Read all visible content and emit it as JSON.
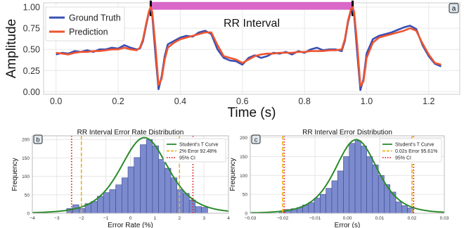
{
  "chart_data": [
    {
      "id": "a",
      "type": "line",
      "panel_label": "a",
      "xlabel": "Time (s)",
      "ylabel": "Amplitude",
      "xlim": [
        -0.04,
        1.3
      ],
      "ylim": [
        -0.03,
        1.05
      ],
      "xticks": [
        0.0,
        0.2,
        0.4,
        0.6,
        0.8,
        1.0,
        1.2
      ],
      "xtick_labels": [
        "0.0",
        "0.2",
        "0.4",
        "0.6",
        "0.8",
        "1.0",
        "1.2"
      ],
      "yticks": [
        0.0,
        0.25,
        0.5,
        0.75,
        1.0
      ],
      "ytick_labels": [
        "0.00",
        "0.25",
        "0.50",
        "0.75",
        "1.00"
      ],
      "grid": true,
      "legend_position": "top-left",
      "annotation": {
        "text": "RR Interval",
        "x_start": 0.305,
        "x_end": 0.955,
        "y": 1.01,
        "color": "#d968c9"
      },
      "series": [
        {
          "name": "Ground Truth",
          "color": "#3b4fb3",
          "x": [
            0.0,
            0.02,
            0.04,
            0.06,
            0.08,
            0.1,
            0.12,
            0.14,
            0.16,
            0.18,
            0.2,
            0.22,
            0.24,
            0.26,
            0.27,
            0.28,
            0.29,
            0.3,
            0.305,
            0.31,
            0.32,
            0.33,
            0.34,
            0.35,
            0.36,
            0.38,
            0.4,
            0.42,
            0.44,
            0.46,
            0.48,
            0.5,
            0.52,
            0.54,
            0.56,
            0.58,
            0.6,
            0.62,
            0.64,
            0.66,
            0.68,
            0.7,
            0.72,
            0.74,
            0.76,
            0.78,
            0.8,
            0.82,
            0.84,
            0.86,
            0.88,
            0.9,
            0.92,
            0.93,
            0.94,
            0.95,
            0.955,
            0.96,
            0.97,
            0.98,
            0.99,
            1.0,
            1.02,
            1.04,
            1.06,
            1.08,
            1.1,
            1.12,
            1.14,
            1.16,
            1.18,
            1.2,
            1.22,
            1.24
          ],
          "y": [
            0.44,
            0.46,
            0.45,
            0.48,
            0.47,
            0.49,
            0.47,
            0.5,
            0.5,
            0.52,
            0.51,
            0.55,
            0.52,
            0.5,
            0.51,
            0.6,
            0.78,
            0.95,
            0.99,
            0.9,
            0.45,
            0.03,
            0.18,
            0.42,
            0.56,
            0.6,
            0.64,
            0.66,
            0.65,
            0.7,
            0.72,
            0.68,
            0.5,
            0.4,
            0.37,
            0.36,
            0.32,
            0.4,
            0.43,
            0.4,
            0.42,
            0.46,
            0.45,
            0.47,
            0.44,
            0.48,
            0.46,
            0.5,
            0.52,
            0.49,
            0.5,
            0.5,
            0.48,
            0.6,
            0.82,
            0.96,
            0.98,
            0.9,
            0.45,
            0.02,
            0.15,
            0.45,
            0.62,
            0.66,
            0.68,
            0.7,
            0.73,
            0.76,
            0.78,
            0.74,
            0.55,
            0.42,
            0.33,
            0.3
          ]
        },
        {
          "name": "Prediction",
          "color": "#ee5530",
          "x": [
            0.0,
            0.02,
            0.04,
            0.06,
            0.08,
            0.1,
            0.12,
            0.14,
            0.16,
            0.18,
            0.2,
            0.22,
            0.24,
            0.26,
            0.27,
            0.28,
            0.29,
            0.3,
            0.305,
            0.31,
            0.32,
            0.33,
            0.34,
            0.35,
            0.36,
            0.38,
            0.4,
            0.42,
            0.44,
            0.46,
            0.48,
            0.5,
            0.52,
            0.54,
            0.56,
            0.58,
            0.6,
            0.62,
            0.64,
            0.66,
            0.68,
            0.7,
            0.72,
            0.74,
            0.76,
            0.78,
            0.8,
            0.82,
            0.84,
            0.86,
            0.88,
            0.9,
            0.92,
            0.93,
            0.94,
            0.95,
            0.955,
            0.96,
            0.97,
            0.98,
            0.99,
            1.0,
            1.02,
            1.04,
            1.06,
            1.08,
            1.1,
            1.12,
            1.14,
            1.16,
            1.18,
            1.2,
            1.22,
            1.24
          ],
          "y": [
            0.46,
            0.45,
            0.44,
            0.46,
            0.47,
            0.47,
            0.48,
            0.48,
            0.49,
            0.5,
            0.5,
            0.52,
            0.5,
            0.49,
            0.52,
            0.62,
            0.8,
            0.96,
            1.0,
            0.94,
            0.55,
            0.08,
            0.15,
            0.38,
            0.52,
            0.58,
            0.62,
            0.64,
            0.66,
            0.68,
            0.7,
            0.7,
            0.55,
            0.42,
            0.4,
            0.38,
            0.34,
            0.38,
            0.42,
            0.44,
            0.45,
            0.45,
            0.46,
            0.46,
            0.46,
            0.47,
            0.47,
            0.48,
            0.48,
            0.48,
            0.49,
            0.49,
            0.5,
            0.62,
            0.84,
            0.98,
            1.0,
            0.94,
            0.55,
            0.07,
            0.12,
            0.4,
            0.58,
            0.64,
            0.66,
            0.68,
            0.7,
            0.72,
            0.75,
            0.72,
            0.57,
            0.44,
            0.34,
            0.32
          ]
        }
      ]
    },
    {
      "id": "b",
      "type": "bar",
      "panel_label": "b",
      "title": "RR Interval Error Rate Distribution",
      "xlabel": "Error Rate (%)",
      "ylabel": "Frequency",
      "xlim": [
        -4,
        4
      ],
      "ylim": [
        0,
        210
      ],
      "xticks": [
        -4,
        -3,
        -2,
        -1,
        0,
        1,
        2,
        3,
        4
      ],
      "xtick_labels": [
        "−4",
        "−3",
        "−2",
        "−1",
        "0",
        "1",
        "2",
        "3",
        "4"
      ],
      "yticks": [
        0,
        50,
        100,
        150,
        200
      ],
      "ytick_labels": [
        "0",
        "50",
        "100",
        "150",
        "200"
      ],
      "grid": true,
      "legend_position": "top-right",
      "bins": {
        "start": -2.6,
        "width": 0.25,
        "counts": [
          13,
          23,
          13,
          26,
          32,
          46,
          56,
          64,
          77,
          96,
          126,
          151,
          186,
          200,
          183,
          146,
          122,
          96,
          64,
          54,
          36,
          18,
          16
        ]
      },
      "curve_peak": 205,
      "series": [
        {
          "name": "Student's T Curve",
          "color": "#2a8a2a",
          "style": "solid"
        },
        {
          "name": "2% Error 92.48%",
          "color": "#f2b10f",
          "style": "dashed",
          "x_positions": [
            -2,
            2
          ]
        },
        {
          "name": "95% CI",
          "color": "#dc1e1e",
          "style": "dotted",
          "x_positions": [
            -2.4,
            2.55
          ]
        }
      ]
    },
    {
      "id": "c",
      "type": "bar",
      "panel_label": "c",
      "title": "RR Interval Error Distribution",
      "xlabel": "Error (s)",
      "ylabel": "Frequency",
      "xlim": [
        -0.03,
        0.03
      ],
      "ylim": [
        0,
        205
      ],
      "xticks": [
        -0.03,
        -0.02,
        -0.01,
        0.0,
        0.01,
        0.02,
        0.03
      ],
      "xtick_labels": [
        "−0.03",
        "−0.02",
        "−0.01",
        "0.00",
        "0.01",
        "0.02",
        "0.03"
      ],
      "yticks": [
        0,
        50,
        100,
        150,
        200
      ],
      "ytick_labels": [
        "0",
        "50",
        "100",
        "150",
        "200"
      ],
      "grid": true,
      "legend_position": "top-right",
      "bins": {
        "start": -0.021,
        "width": 0.0018,
        "counts": [
          6,
          10,
          12,
          15,
          22,
          28,
          40,
          50,
          66,
          86,
          112,
          150,
          185,
          192,
          178,
          150,
          128,
          100,
          76,
          56,
          30,
          20,
          14
        ]
      },
      "curve_peak": 195,
      "series": [
        {
          "name": "Student's T Curve",
          "color": "#2a8a2a",
          "style": "solid"
        },
        {
          "name": "0.02s Error 95.61%",
          "color": "#f2b10f",
          "style": "dashed",
          "x_positions": [
            -0.02,
            0.02
          ]
        },
        {
          "name": "95% CI",
          "color": "#dc1e1e",
          "style": "dotted",
          "x_positions": [
            -0.0195,
            0.0205
          ]
        }
      ]
    }
  ]
}
